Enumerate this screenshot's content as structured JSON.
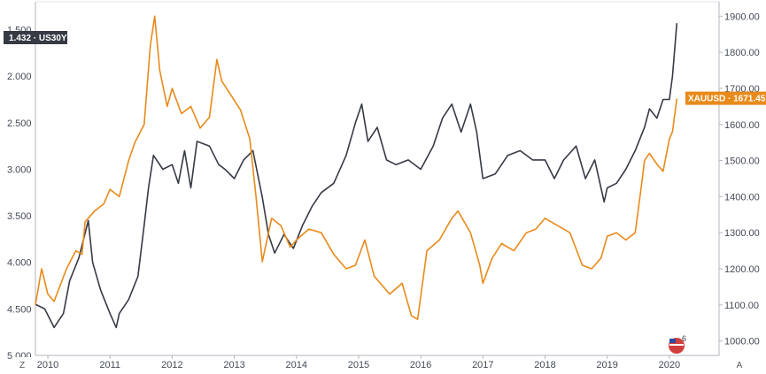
{
  "chart_data": {
    "type": "line",
    "title": "",
    "xlabel": "",
    "x_ticks": [
      "2010",
      "2011",
      "2012",
      "2013",
      "2014",
      "2015",
      "2016",
      "2017",
      "2018",
      "2019",
      "2020"
    ],
    "left_axis": {
      "ticks": [
        "1.500",
        "2.000",
        "2.500",
        "3.000",
        "3.500",
        "4.000",
        "4.500",
        "5.000"
      ],
      "inverted": true,
      "ylim": [
        1.2,
        5.0
      ]
    },
    "right_axis": {
      "ticks": [
        "1000.00",
        "1100.00",
        "1200.00",
        "1300.00",
        "1400.00",
        "1500.00",
        "1600.00",
        "1700.00",
        "1800.00",
        "1900.00"
      ],
      "ylim": [
        960,
        1940
      ]
    },
    "xlim": [
      2009.8,
      2020.8
    ],
    "series": [
      {
        "name": "US30Y",
        "axis": "left",
        "color": "#363a45",
        "last_value": "1.432",
        "x": [
          2009.8,
          2009.95,
          2010.1,
          2010.25,
          2010.35,
          2010.5,
          2010.65,
          2010.72,
          2010.85,
          2011.0,
          2011.1,
          2011.15,
          2011.3,
          2011.45,
          2011.55,
          2011.62,
          2011.7,
          2011.85,
          2012.0,
          2012.1,
          2012.2,
          2012.3,
          2012.4,
          2012.6,
          2012.75,
          2012.85,
          2013.0,
          2013.15,
          2013.3,
          2013.45,
          2013.55,
          2013.65,
          2013.8,
          2013.95,
          2014.1,
          2014.25,
          2014.4,
          2014.6,
          2014.8,
          2014.95,
          2015.05,
          2015.15,
          2015.3,
          2015.45,
          2015.6,
          2015.8,
          2016.0,
          2016.2,
          2016.35,
          2016.5,
          2016.65,
          2016.8,
          2016.9,
          2017.0,
          2017.2,
          2017.4,
          2017.6,
          2017.8,
          2018.0,
          2018.15,
          2018.3,
          2018.5,
          2018.65,
          2018.8,
          2018.95,
          2019.0,
          2019.15,
          2019.3,
          2019.45,
          2019.6,
          2019.68,
          2019.8,
          2019.9,
          2020.0,
          2020.05,
          2020.12
        ],
        "values": [
          4.45,
          4.5,
          4.7,
          4.55,
          4.2,
          3.95,
          3.55,
          4.0,
          4.3,
          4.55,
          4.7,
          4.55,
          4.4,
          4.15,
          3.6,
          3.2,
          2.85,
          3.0,
          2.95,
          3.15,
          2.8,
          3.2,
          2.7,
          2.75,
          2.95,
          3.0,
          3.1,
          2.9,
          2.8,
          3.3,
          3.7,
          3.9,
          3.7,
          3.85,
          3.6,
          3.4,
          3.25,
          3.15,
          2.85,
          2.5,
          2.3,
          2.7,
          2.55,
          2.9,
          2.95,
          2.9,
          3.0,
          2.75,
          2.45,
          2.3,
          2.6,
          2.3,
          2.6,
          3.1,
          3.05,
          2.85,
          2.8,
          2.9,
          2.9,
          3.1,
          2.9,
          2.75,
          3.1,
          2.9,
          3.35,
          3.2,
          3.15,
          3.0,
          2.8,
          2.55,
          2.35,
          2.45,
          2.25,
          2.25,
          2.0,
          1.43
        ]
      },
      {
        "name": "XAUUSD",
        "axis": "right",
        "color": "#e88a1a",
        "last_value": "1671.45",
        "x": [
          2009.8,
          2009.9,
          2010.0,
          2010.1,
          2010.3,
          2010.45,
          2010.55,
          2010.6,
          2010.75,
          2010.9,
          2011.0,
          2011.15,
          2011.3,
          2011.4,
          2011.55,
          2011.65,
          2011.72,
          2011.8,
          2011.92,
          2012.0,
          2012.15,
          2012.3,
          2012.45,
          2012.6,
          2012.72,
          2012.8,
          2012.95,
          2013.1,
          2013.25,
          2013.35,
          2013.45,
          2013.6,
          2013.75,
          2013.9,
          2014.0,
          2014.2,
          2014.4,
          2014.6,
          2014.8,
          2014.95,
          2015.1,
          2015.25,
          2015.5,
          2015.7,
          2015.85,
          2015.95,
          2016.1,
          2016.3,
          2016.5,
          2016.6,
          2016.8,
          2016.95,
          2017.0,
          2017.15,
          2017.3,
          2017.5,
          2017.7,
          2017.85,
          2018.0,
          2018.2,
          2018.4,
          2018.6,
          2018.75,
          2018.9,
          2019.0,
          2019.15,
          2019.3,
          2019.45,
          2019.55,
          2019.6,
          2019.68,
          2019.8,
          2019.9,
          2020.0,
          2020.05,
          2020.12
        ],
        "values": [
          1100,
          1200,
          1130,
          1110,
          1200,
          1250,
          1240,
          1330,
          1360,
          1380,
          1420,
          1400,
          1500,
          1550,
          1600,
          1820,
          1900,
          1750,
          1650,
          1700,
          1630,
          1650,
          1590,
          1620,
          1780,
          1720,
          1680,
          1640,
          1560,
          1400,
          1220,
          1340,
          1320,
          1260,
          1280,
          1310,
          1300,
          1240,
          1200,
          1210,
          1280,
          1180,
          1130,
          1160,
          1070,
          1060,
          1250,
          1280,
          1340,
          1360,
          1300,
          1210,
          1160,
          1230,
          1270,
          1250,
          1300,
          1310,
          1340,
          1320,
          1300,
          1210,
          1200,
          1230,
          1290,
          1300,
          1280,
          1300,
          1430,
          1500,
          1520,
          1490,
          1470,
          1560,
          1580,
          1671.45
        ]
      }
    ],
    "grid": false,
    "legend": "none"
  },
  "ui": {
    "corner_left": "Z",
    "corner_right": "A",
    "badge_count": "6"
  }
}
